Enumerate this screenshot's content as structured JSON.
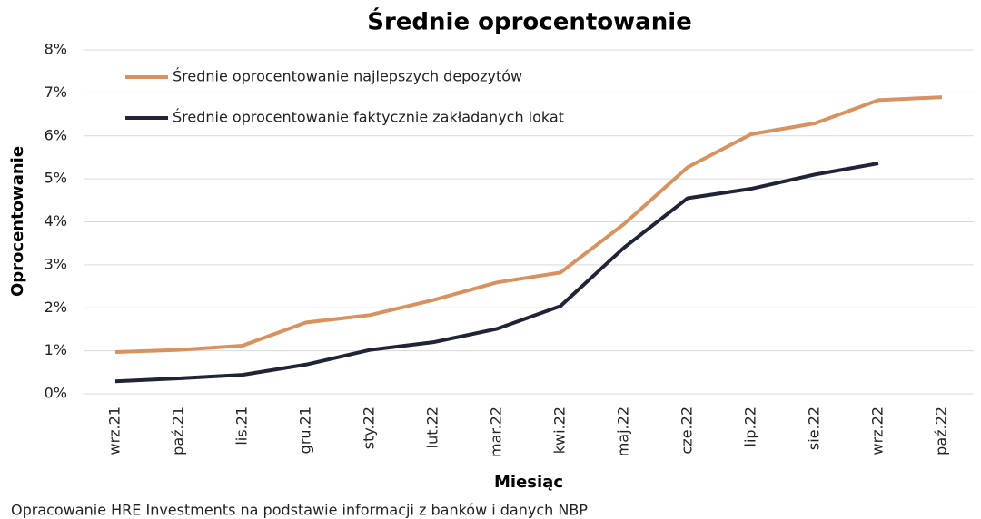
{
  "chart_data": {
    "type": "line",
    "title": "Średnie oprocentowanie",
    "x_label": "Miesiąc",
    "y_label": "Oprocentowanie",
    "source": "Opracowanie HRE Investments na podstawie informacji z banków i danych NBP",
    "categories": [
      "wrz.21",
      "paź.21",
      "lis.21",
      "gru.21",
      "sty.22",
      "lut.22",
      "mar.22",
      "kwi.22",
      "maj.22",
      "cze.22",
      "lip.22",
      "sie.22",
      "wrz.22",
      "paź.22"
    ],
    "series": [
      {
        "name": "Średnie oprocentowanie najlepszych depozytów",
        "color": "#d9925f",
        "values": [
          0.97,
          1.02,
          1.12,
          1.66,
          1.83,
          2.18,
          2.59,
          2.82,
          3.95,
          5.27,
          6.04,
          6.29,
          6.83,
          6.9
        ]
      },
      {
        "name": "Średnie oprocentowanie faktycznie zakładanych lokat",
        "color": "#1f2436",
        "values": [
          0.29,
          0.36,
          0.44,
          0.68,
          1.02,
          1.2,
          1.51,
          2.04,
          3.4,
          4.55,
          4.77,
          5.1,
          5.36,
          null
        ]
      }
    ],
    "ylim": [
      0,
      8
    ],
    "yticks": [
      {
        "value": 0,
        "label": "0%"
      },
      {
        "value": 1,
        "label": "1%"
      },
      {
        "value": 2,
        "label": "2%"
      },
      {
        "value": 3,
        "label": "3%"
      },
      {
        "value": 4,
        "label": "4%"
      },
      {
        "value": 5,
        "label": "5%"
      },
      {
        "value": 6,
        "label": "6%"
      },
      {
        "value": 7,
        "label": "7%"
      },
      {
        "value": 8,
        "label": "8%"
      }
    ],
    "grid": true,
    "legend": "top-left"
  }
}
